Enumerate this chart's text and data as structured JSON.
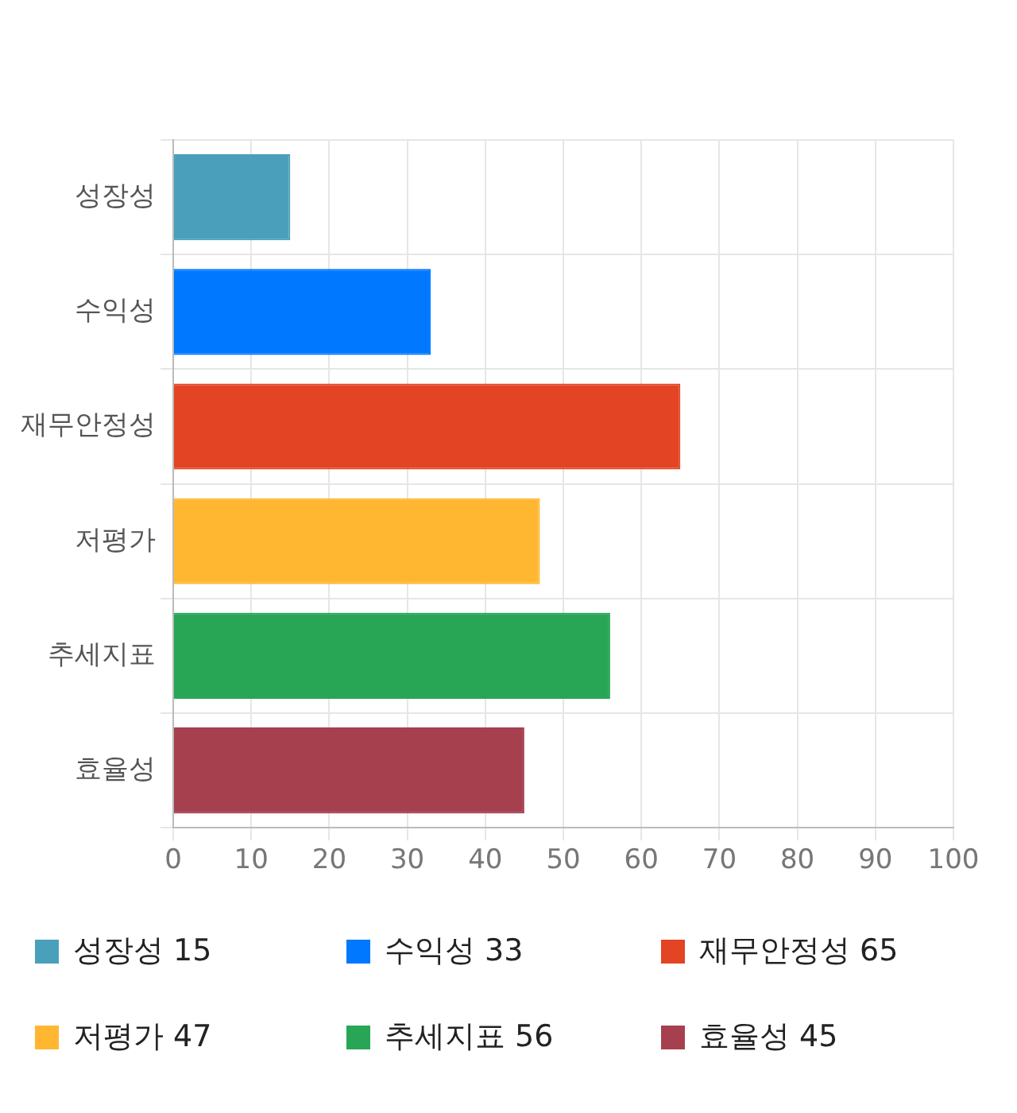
{
  "chart_data": {
    "type": "bar",
    "orientation": "horizontal",
    "categories": [
      "성장성",
      "수익성",
      "재무안정성",
      "저평가",
      "추세지표",
      "효율성"
    ],
    "values": [
      15,
      33,
      65,
      47,
      56,
      45
    ],
    "value_labels": [
      "15",
      "33",
      "65",
      "47",
      "56",
      "45"
    ],
    "colors": [
      "#4aa0bb",
      "#0078ff",
      "#e24424",
      "#ffb732",
      "#28a655",
      "#a6404e"
    ],
    "xlim": [
      0,
      100
    ],
    "xticks": [
      0,
      10,
      20,
      30,
      40,
      50,
      60,
      70,
      80,
      90,
      100
    ],
    "grid": true
  }
}
